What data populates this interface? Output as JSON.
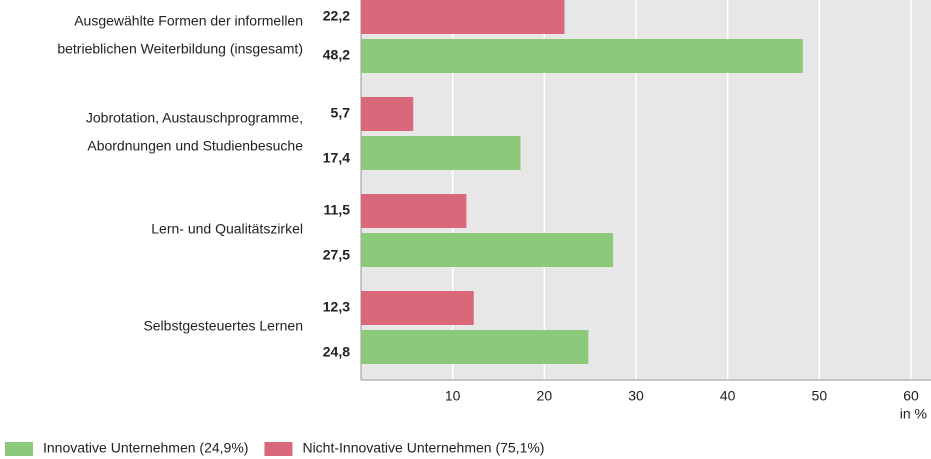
{
  "chart_data": {
    "type": "bar",
    "orientation": "horizontal",
    "categories": [
      [
        "Ausgewählte Formen der informellen",
        "betrieblichen Weiterbildung (insgesamt)"
      ],
      [
        "Jobrotation, Austauschprogramme,",
        "Abordnungen und Studienbesuche"
      ],
      [
        "Lern- und Qualitätszirkel"
      ],
      [
        "Selbstgesteuertes Lernen"
      ]
    ],
    "series": [
      {
        "name": "Innovative Unternehmen (24,9%)",
        "color": "#8cc97a",
        "values": [
          48.2,
          17.4,
          27.5,
          24.8
        ],
        "value_labels": [
          "48,2",
          "17,4",
          "27,5",
          "24,8"
        ]
      },
      {
        "name": "Nicht-Innovative Unternehmen (75,1%)",
        "color": "#d9697a",
        "values": [
          22.2,
          5.7,
          11.5,
          12.3
        ],
        "value_labels": [
          "22,2",
          "5,7",
          "11,5",
          "12,3"
        ]
      }
    ],
    "xlim": [
      0,
      60
    ],
    "xticks": [
      10,
      20,
      30,
      40,
      50,
      60
    ],
    "x_unit": "in %",
    "grid": true,
    "legend": "bottom-left"
  }
}
